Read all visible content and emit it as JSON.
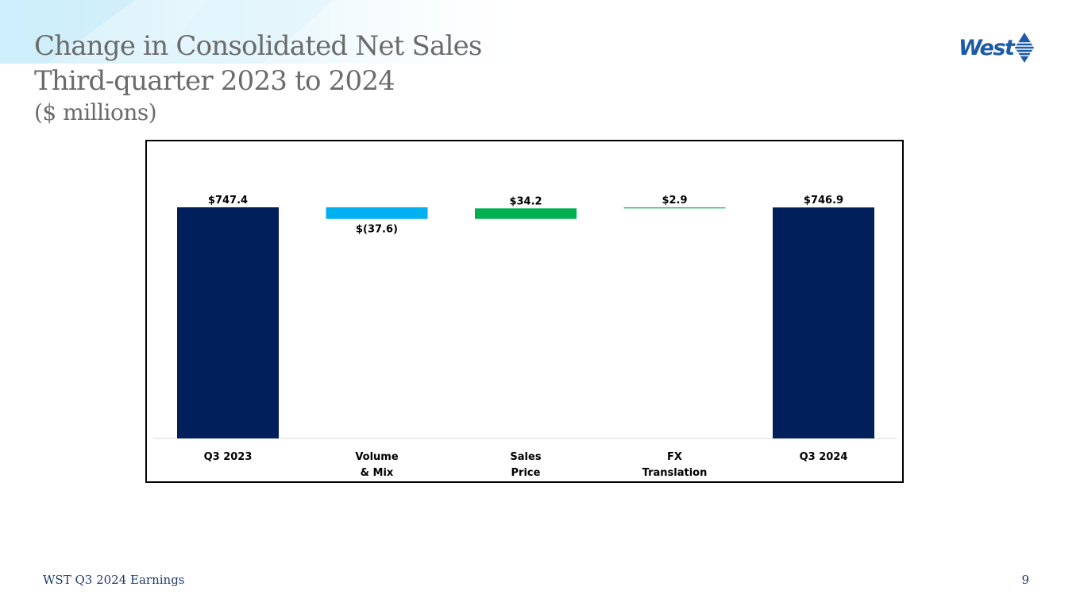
{
  "slide": {
    "title": "Change in Consolidated Net Sales",
    "title_line2": "Third-quarter 2023 to 2024",
    "units": "($ millions)",
    "logo_text": "West",
    "footer": "WST Q3 2024 Earnings",
    "page_number": "9"
  },
  "colors": {
    "navy": "#001f5b",
    "light_blue": "#00b0f0",
    "green": "#00b050",
    "title_gray": "#6b6b6b",
    "logo_blue": "#1d5aa8"
  },
  "chart_data": {
    "type": "bar",
    "subtype": "waterfall",
    "categories": [
      "Q3 2023",
      "Volume & Mix",
      "Sales Price",
      "FX Translation",
      "Q3 2024"
    ],
    "category_lines": [
      [
        "Q3 2023"
      ],
      [
        "Volume",
        "& Mix"
      ],
      [
        "Sales",
        "Price"
      ],
      [
        "FX",
        "Translation"
      ],
      [
        "Q3 2024"
      ]
    ],
    "values": [
      747.4,
      -37.6,
      34.2,
      2.9,
      746.9
    ],
    "value_labels": [
      "$747.4",
      "$(37.6)",
      "$34.2",
      "$2.9",
      "$746.9"
    ],
    "kinds": [
      "total",
      "delta",
      "delta",
      "delta",
      "total"
    ],
    "bar_colors": [
      "#001f5b",
      "#00b0f0",
      "#00b050",
      "#00b050",
      "#001f5b"
    ],
    "ylim": [
      0,
      820
    ],
    "title": "",
    "xlabel": "",
    "ylabel": "",
    "grid": false,
    "legend": "none"
  }
}
